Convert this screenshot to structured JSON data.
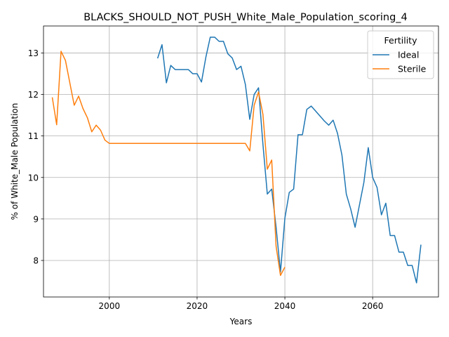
{
  "chart_data": {
    "type": "line",
    "title": "BLACKS_SHOULD_NOT_PUSH_White_Male_Population_scoring_4",
    "xlabel": "Years",
    "ylabel": "% of White_Male Population",
    "xlim": [
      1985,
      2075
    ],
    "ylim": [
      7.12,
      13.65
    ],
    "xticks": [
      2000,
      2020,
      2040,
      2060
    ],
    "yticks": [
      8,
      9,
      10,
      11,
      12,
      13
    ],
    "grid": true,
    "legend": {
      "title": "Fertility",
      "placement": "top-right",
      "entries": [
        "Ideal",
        "Sterile"
      ]
    },
    "series": [
      {
        "name": "Ideal",
        "color": "#1f77b4",
        "points": [
          [
            2011,
            12.87
          ],
          [
            2012,
            13.2
          ],
          [
            2013,
            12.28
          ],
          [
            2014,
            12.7
          ],
          [
            2015,
            12.6
          ],
          [
            2016,
            12.6
          ],
          [
            2017,
            12.6
          ],
          [
            2018,
            12.6
          ],
          [
            2019,
            12.5
          ],
          [
            2020,
            12.5
          ],
          [
            2021,
            12.3
          ],
          [
            2022,
            12.9
          ],
          [
            2023,
            13.38
          ],
          [
            2024,
            13.38
          ],
          [
            2025,
            13.28
          ],
          [
            2026,
            13.28
          ],
          [
            2027,
            12.98
          ],
          [
            2028,
            12.88
          ],
          [
            2029,
            12.6
          ],
          [
            2030,
            12.68
          ],
          [
            2031,
            12.24
          ],
          [
            2032,
            11.4
          ],
          [
            2033,
            12.0
          ],
          [
            2034,
            12.16
          ],
          [
            2035,
            10.8
          ],
          [
            2036,
            9.6
          ],
          [
            2037,
            9.72
          ],
          [
            2038,
            8.8
          ],
          [
            2039,
            7.72
          ],
          [
            2040,
            9.02
          ],
          [
            2041,
            9.64
          ],
          [
            2042,
            9.72
          ],
          [
            2043,
            11.03
          ],
          [
            2044,
            11.03
          ],
          [
            2045,
            11.64
          ],
          [
            2046,
            11.72
          ],
          [
            2047,
            11.6
          ],
          [
            2048,
            11.48
          ],
          [
            2049,
            11.36
          ],
          [
            2050,
            11.26
          ],
          [
            2051,
            11.38
          ],
          [
            2052,
            11.06
          ],
          [
            2053,
            10.54
          ],
          [
            2054,
            9.6
          ],
          [
            2055,
            9.24
          ],
          [
            2056,
            8.8
          ],
          [
            2057,
            9.34
          ],
          [
            2058,
            9.88
          ],
          [
            2059,
            10.72
          ],
          [
            2060,
            10.0
          ],
          [
            2061,
            9.76
          ],
          [
            2062,
            9.1
          ],
          [
            2063,
            9.38
          ],
          [
            2064,
            8.6
          ],
          [
            2065,
            8.6
          ],
          [
            2066,
            8.2
          ],
          [
            2067,
            8.2
          ],
          [
            2068,
            7.88
          ],
          [
            2069,
            7.88
          ],
          [
            2070,
            7.46
          ],
          [
            2071,
            8.38
          ]
        ]
      },
      {
        "name": "Sterile",
        "color": "#ff7f0e",
        "points": [
          [
            1987,
            11.93
          ],
          [
            1988,
            11.27
          ],
          [
            1989,
            13.04
          ],
          [
            1990,
            12.82
          ],
          [
            1991,
            12.28
          ],
          [
            1992,
            11.74
          ],
          [
            1993,
            11.96
          ],
          [
            1994,
            11.66
          ],
          [
            1995,
            11.44
          ],
          [
            1996,
            11.1
          ],
          [
            1997,
            11.26
          ],
          [
            1998,
            11.14
          ],
          [
            1999,
            10.9
          ],
          [
            2000,
            10.82
          ],
          [
            2001,
            10.82
          ],
          [
            2010,
            10.82
          ],
          [
            2020,
            10.82
          ],
          [
            2030,
            10.82
          ],
          [
            2031,
            10.82
          ],
          [
            2032,
            10.64
          ],
          [
            2033,
            11.74
          ],
          [
            2034,
            12.06
          ],
          [
            2035,
            11.52
          ],
          [
            2036,
            10.2
          ],
          [
            2037,
            10.42
          ],
          [
            2038,
            8.34
          ],
          [
            2039,
            7.64
          ],
          [
            2040,
            7.84
          ]
        ]
      }
    ]
  }
}
